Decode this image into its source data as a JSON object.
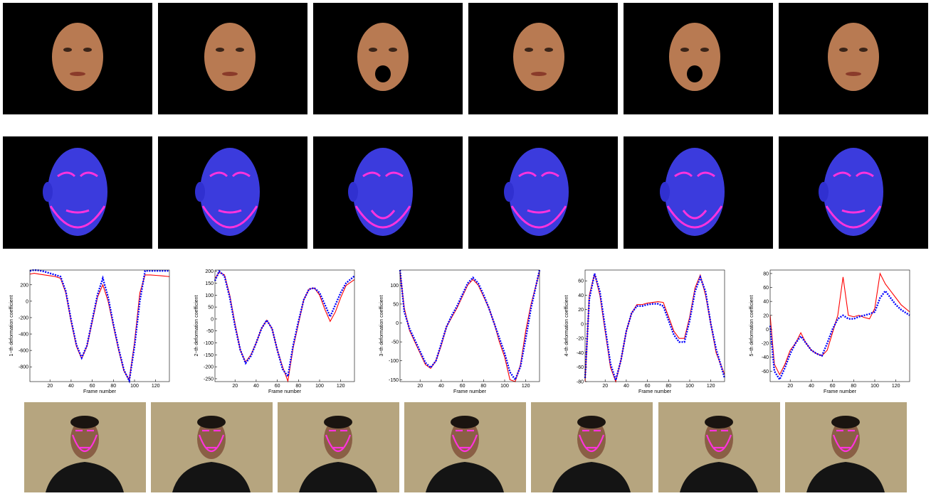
{
  "chart_data": [
    {
      "type": "line",
      "xlabel": "Frame number",
      "ylabel": "1−th deformation coefficient",
      "x": [
        1,
        5,
        10,
        15,
        20,
        25,
        30,
        35,
        40,
        45,
        50,
        55,
        60,
        65,
        70,
        75,
        80,
        85,
        90,
        95,
        100,
        105,
        110,
        115,
        120,
        125,
        133
      ],
      "xlim": [
        1,
        133
      ],
      "xticks": [
        20,
        40,
        60,
        80,
        100,
        120
      ],
      "ylim": [
        -980,
        380
      ],
      "yticks": [
        -800,
        -600,
        -400,
        -200,
        0,
        200
      ],
      "series": [
        {
          "color": "#ff0000",
          "style": "solid",
          "values": [
            330,
            340,
            330,
            320,
            310,
            300,
            280,
            100,
            -250,
            -550,
            -700,
            -550,
            -250,
            50,
            200,
            0,
            -300,
            -600,
            -850,
            -960,
            -500,
            100,
            320,
            320,
            315,
            310,
            300
          ]
        },
        {
          "color": "#0000ff",
          "style": "dotted",
          "values": [
            370,
            380,
            375,
            360,
            340,
            320,
            300,
            120,
            -230,
            -530,
            -690,
            -540,
            -230,
            80,
            280,
            50,
            -280,
            -580,
            -840,
            -970,
            -550,
            0,
            370,
            370,
            370,
            370,
            370
          ]
        }
      ]
    },
    {
      "type": "line",
      "xlabel": "Frame number",
      "ylabel": "2−th deformation coefficient",
      "x": [
        1,
        5,
        10,
        15,
        20,
        25,
        30,
        35,
        40,
        45,
        50,
        55,
        60,
        65,
        70,
        75,
        80,
        85,
        90,
        95,
        100,
        105,
        110,
        115,
        120,
        125,
        133
      ],
      "xlim": [
        1,
        133
      ],
      "xticks": [
        20,
        40,
        60,
        80,
        100,
        120
      ],
      "ylim": [
        -262,
        205
      ],
      "yticks": [
        -250,
        -200,
        -150,
        -100,
        -50,
        0,
        50,
        100,
        150,
        200
      ],
      "series": [
        {
          "color": "#ff0000",
          "style": "solid",
          "values": [
            170,
            195,
            185,
            100,
            -20,
            -130,
            -180,
            -150,
            -100,
            -40,
            -5,
            -40,
            -130,
            -200,
            -260,
            -120,
            -20,
            80,
            125,
            130,
            100,
            40,
            -10,
            30,
            90,
            140,
            165
          ]
        },
        {
          "color": "#0000ff",
          "style": "dotted",
          "values": [
            160,
            200,
            180,
            90,
            -30,
            -130,
            -185,
            -155,
            -100,
            -40,
            -5,
            -40,
            -130,
            -210,
            -240,
            -110,
            -10,
            80,
            125,
            130,
            110,
            60,
            10,
            60,
            110,
            150,
            180
          ]
        }
      ]
    },
    {
      "type": "line",
      "xlabel": "Frame number",
      "ylabel": "3−th deformation coefficient",
      "x": [
        1,
        5,
        10,
        15,
        20,
        25,
        30,
        35,
        40,
        45,
        50,
        55,
        60,
        65,
        70,
        75,
        80,
        85,
        90,
        95,
        100,
        105,
        110,
        115,
        120,
        125,
        133
      ],
      "xlim": [
        1,
        133
      ],
      "xticks": [
        20,
        40,
        60,
        80,
        100,
        120
      ],
      "ylim": [
        -155,
        140
      ],
      "yticks": [
        -150,
        -100,
        -50,
        0,
        50,
        100
      ],
      "series": [
        {
          "color": "#ff0000",
          "style": "solid",
          "values": [
            135,
            40,
            -20,
            -50,
            -80,
            -110,
            -120,
            -100,
            -60,
            -10,
            15,
            40,
            70,
            100,
            115,
            100,
            70,
            40,
            0,
            -50,
            -90,
            -150,
            -155,
            -110,
            -20,
            50,
            135
          ]
        },
        {
          "color": "#0000ff",
          "style": "dotted",
          "values": [
            140,
            30,
            -15,
            -45,
            -75,
            -105,
            -118,
            -100,
            -55,
            -10,
            20,
            45,
            75,
            105,
            120,
            105,
            75,
            40,
            0,
            -40,
            -80,
            -130,
            -150,
            -115,
            -40,
            40,
            140
          ]
        }
      ]
    },
    {
      "type": "line",
      "xlabel": "Frame number",
      "ylabel": "4−th deformation coefficient",
      "x": [
        1,
        5,
        10,
        15,
        20,
        25,
        30,
        35,
        40,
        45,
        50,
        55,
        60,
        65,
        70,
        75,
        80,
        85,
        90,
        95,
        100,
        105,
        110,
        115,
        120,
        125,
        133
      ],
      "xlim": [
        1,
        133
      ],
      "xticks": [
        20,
        40,
        60,
        80,
        100,
        120
      ],
      "ylim": [
        -80,
        75
      ],
      "yticks": [
        -80,
        -60,
        -40,
        -20,
        0,
        20,
        40,
        60
      ],
      "series": [
        {
          "color": "#ff0000",
          "style": "solid",
          "values": [
            -80,
            40,
            70,
            40,
            -10,
            -60,
            -80,
            -50,
            -10,
            15,
            27,
            27,
            29,
            30,
            31,
            30,
            10,
            -10,
            -20,
            -20,
            10,
            50,
            68,
            40,
            0,
            -40,
            -70
          ]
        },
        {
          "color": "#0000ff",
          "style": "dotted",
          "values": [
            -75,
            35,
            70,
            45,
            -5,
            -55,
            -78,
            -50,
            -10,
            15,
            25,
            25,
            27,
            28,
            28,
            25,
            5,
            -15,
            -25,
            -25,
            5,
            45,
            65,
            45,
            0,
            -35,
            -75
          ]
        }
      ]
    },
    {
      "type": "line",
      "xlabel": "Frame number",
      "ylabel": "5−th deformation coefficient",
      "x": [
        1,
        5,
        10,
        15,
        20,
        25,
        30,
        35,
        40,
        45,
        50,
        55,
        60,
        65,
        70,
        75,
        80,
        85,
        90,
        95,
        100,
        105,
        110,
        115,
        120,
        125,
        133
      ],
      "xlim": [
        1,
        133
      ],
      "xticks": [
        20,
        40,
        60,
        80,
        100,
        120
      ],
      "ylim": [
        -75,
        85
      ],
      "yticks": [
        -60,
        -40,
        -20,
        0,
        20,
        40,
        60,
        80
      ],
      "series": [
        {
          "color": "#ff0000",
          "style": "solid",
          "values": [
            20,
            -50,
            -65,
            -50,
            -30,
            -20,
            -5,
            -20,
            -30,
            -35,
            -38,
            -30,
            -5,
            20,
            75,
            20,
            18,
            20,
            17,
            15,
            30,
            80,
            65,
            55,
            45,
            35,
            25
          ]
        },
        {
          "color": "#0000ff",
          "style": "dotted",
          "values": [
            5,
            -60,
            -72,
            -55,
            -35,
            -20,
            -10,
            -20,
            -30,
            -35,
            -38,
            -20,
            0,
            15,
            20,
            15,
            15,
            18,
            20,
            22,
            25,
            45,
            55,
            45,
            35,
            28,
            20
          ]
        }
      ]
    }
  ]
}
